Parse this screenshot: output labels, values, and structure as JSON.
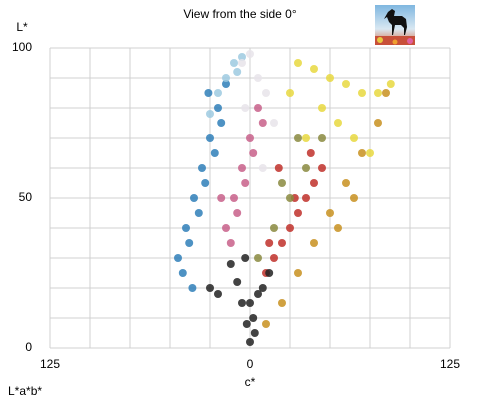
{
  "chart_data": {
    "type": "scatter",
    "title": "View from the side 0°",
    "corner_label": "L*a*b*",
    "xlabel": "c*",
    "ylabel": "L*",
    "xlim": [
      -125,
      125
    ],
    "ylim": [
      0,
      100
    ],
    "xticks": [
      {
        "value": -125,
        "label": "125"
      },
      0,
      125
    ],
    "yticks": [
      0,
      50,
      100
    ],
    "xgrid": [
      -125,
      -100,
      -75,
      -50,
      -25,
      0,
      25,
      50,
      75,
      100,
      125
    ],
    "ygrid": [
      0,
      10,
      20,
      30,
      40,
      50,
      60,
      70,
      80,
      90,
      100
    ],
    "grid": true,
    "series": [
      {
        "color": "#2f7fb8",
        "x": [
          -45,
          -40,
          -35,
          -30,
          -25,
          -20,
          -15,
          -38,
          -32,
          -28,
          -22,
          -18,
          -42,
          -36,
          -26
        ],
        "values": [
          30,
          40,
          50,
          60,
          70,
          80,
          88,
          35,
          45,
          55,
          65,
          75,
          25,
          20,
          85
        ]
      },
      {
        "color": "#9ecae1",
        "x": [
          -20,
          -15,
          -10,
          -25,
          -8,
          -5
        ],
        "values": [
          85,
          90,
          95,
          78,
          92,
          97
        ]
      },
      {
        "color": "#c8608a",
        "x": [
          -15,
          -10,
          -5,
          0,
          5,
          -12,
          -8,
          -3,
          2,
          8,
          -18
        ],
        "values": [
          40,
          50,
          60,
          70,
          80,
          35,
          45,
          55,
          65,
          75,
          50
        ]
      },
      {
        "color": "#c0302a",
        "x": [
          10,
          15,
          20,
          25,
          30,
          35,
          40,
          18,
          28,
          38,
          45,
          12
        ],
        "values": [
          25,
          30,
          35,
          40,
          45,
          50,
          55,
          60,
          50,
          65,
          60,
          35
        ]
      },
      {
        "color": "#e8d840",
        "x": [
          30,
          40,
          50,
          60,
          70,
          80,
          88,
          45,
          55,
          65,
          75,
          35,
          25
        ],
        "values": [
          95,
          93,
          90,
          88,
          85,
          85,
          88,
          80,
          75,
          70,
          65,
          70,
          85
        ]
      },
      {
        "color": "#c89020",
        "x": [
          10,
          20,
          30,
          40,
          50,
          60,
          70,
          80,
          85,
          55,
          65
        ],
        "values": [
          8,
          15,
          25,
          35,
          45,
          55,
          65,
          75,
          85,
          40,
          50
        ]
      },
      {
        "color": "#8a8a40",
        "x": [
          5,
          15,
          25,
          35,
          45,
          20,
          30
        ],
        "values": [
          30,
          40,
          50,
          60,
          70,
          55,
          70
        ]
      },
      {
        "color": "#222222",
        "x": [
          0,
          -2,
          2,
          -5,
          5,
          -8,
          8,
          -12,
          12,
          -3,
          3,
          0,
          -20,
          -25
        ],
        "values": [
          2,
          8,
          10,
          15,
          18,
          22,
          20,
          28,
          25,
          30,
          5,
          15,
          18,
          20
        ]
      },
      {
        "color": "#e8e4ea",
        "x": [
          0,
          -5,
          5,
          10,
          -3,
          8,
          15
        ],
        "values": [
          98,
          95,
          90,
          85,
          80,
          60,
          75
        ]
      }
    ]
  }
}
